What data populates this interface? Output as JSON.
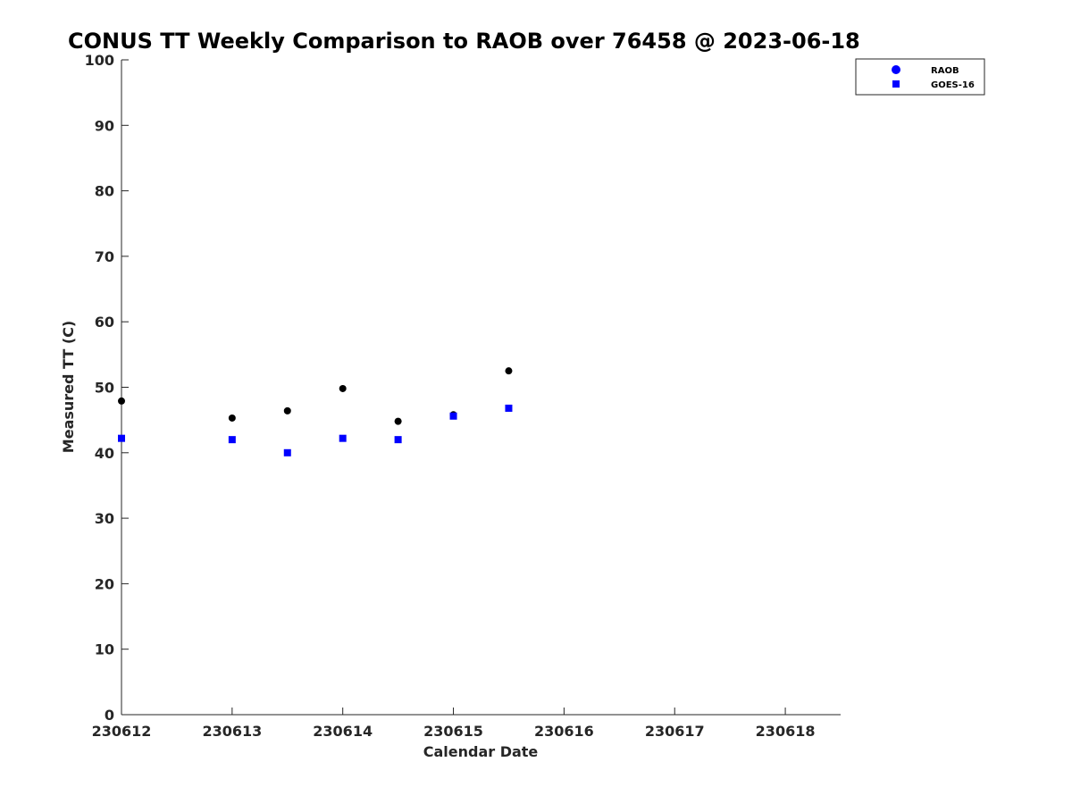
{
  "chart_data": {
    "type": "scatter",
    "title": "CONUS TT Weekly Comparison to RAOB over 76458 @ 2023-06-18",
    "xlabel": "Calendar Date",
    "ylabel": "Measured TT (C)",
    "x_axis_type": "date",
    "x_tick_labels": [
      "230612",
      "230613",
      "230614",
      "230615",
      "230616",
      "230617",
      "230618"
    ],
    "xlim": [
      "2023-06-12T00:00",
      "2023-06-18T12:00"
    ],
    "ylim": [
      0,
      100
    ],
    "y_ticks": [
      0,
      10,
      20,
      30,
      40,
      50,
      60,
      70,
      80,
      90,
      100
    ],
    "grid": false,
    "legend_position": "top-right",
    "series": [
      {
        "name": "RAOB",
        "marker": "circle",
        "color": "#000000",
        "legend_color": "#0000ff",
        "points": [
          {
            "x": "2023-06-12T00:00",
            "y": 47.9
          },
          {
            "x": "2023-06-13T00:00",
            "y": 45.3
          },
          {
            "x": "2023-06-13T12:00",
            "y": 46.4
          },
          {
            "x": "2023-06-14T00:00",
            "y": 49.8
          },
          {
            "x": "2023-06-14T12:00",
            "y": 44.8
          },
          {
            "x": "2023-06-15T00:00",
            "y": 45.8
          },
          {
            "x": "2023-06-15T12:00",
            "y": 52.5
          }
        ]
      },
      {
        "name": "GOES-16",
        "marker": "square",
        "color": "#0000ff",
        "legend_color": "#0000ff",
        "points": [
          {
            "x": "2023-06-12T00:00",
            "y": 42.2
          },
          {
            "x": "2023-06-13T00:00",
            "y": 42.0
          },
          {
            "x": "2023-06-13T12:00",
            "y": 40.0
          },
          {
            "x": "2023-06-14T00:00",
            "y": 42.2
          },
          {
            "x": "2023-06-14T12:00",
            "y": 42.0
          },
          {
            "x": "2023-06-15T00:00",
            "y": 45.6
          },
          {
            "x": "2023-06-15T12:00",
            "y": 46.8
          }
        ]
      }
    ]
  }
}
